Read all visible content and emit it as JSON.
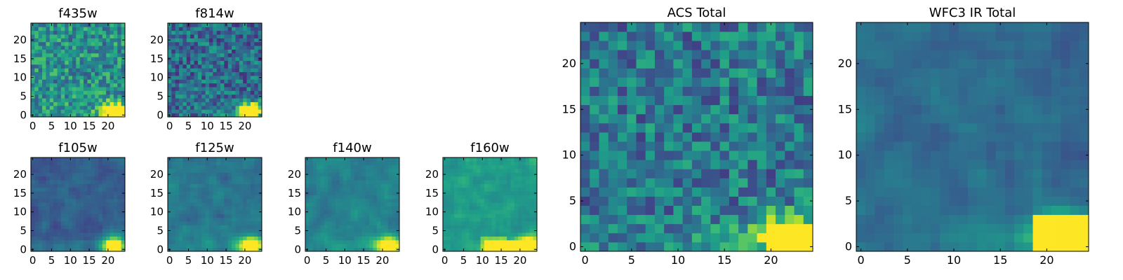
{
  "chart_data": [
    {
      "type": "heatmap",
      "title": "f435w",
      "xticks": [
        "0",
        "5",
        "10",
        "15",
        "20"
      ],
      "yticks": [
        "0",
        "5",
        "10",
        "15",
        "20"
      ],
      "xlim": [
        -0.5,
        24.5
      ],
      "ylim": [
        -0.5,
        24.5
      ],
      "bright_spot": {
        "x": [
          20,
          23
        ],
        "y": [
          0,
          2
        ],
        "max": 1.0
      },
      "description_level": 0.5
    },
    {
      "type": "heatmap",
      "title": "f814w",
      "xticks": [
        "0",
        "5",
        "10",
        "15",
        "20"
      ],
      "yticks": [
        "0",
        "5",
        "10",
        "15",
        "20"
      ],
      "xlim": [
        -0.5,
        24.5
      ],
      "ylim": [
        -0.5,
        24.5
      ],
      "bright_spot": {
        "x": [
          19,
          23
        ],
        "y": [
          0,
          3
        ],
        "max": 1.0
      },
      "description_level": 0.35
    },
    {
      "type": "heatmap",
      "title": "f105w",
      "xticks": [
        "0",
        "5",
        "10",
        "15",
        "20"
      ],
      "yticks": [
        "0",
        "5",
        "10",
        "15",
        "20"
      ],
      "xlim": [
        -0.5,
        24.5
      ],
      "ylim": [
        -0.5,
        24.5
      ],
      "bright_spot": {
        "x": [
          19,
          23
        ],
        "y": [
          0,
          3
        ],
        "max": 1.0
      },
      "description_level": 0.3
    },
    {
      "type": "heatmap",
      "title": "f125w",
      "xticks": [
        "0",
        "5",
        "10",
        "15",
        "20"
      ],
      "yticks": [
        "0",
        "5",
        "10",
        "15",
        "20"
      ],
      "xlim": [
        -0.5,
        24.5
      ],
      "ylim": [
        -0.5,
        24.5
      ],
      "bright_spot": {
        "x": [
          19,
          23
        ],
        "y": [
          0,
          3
        ],
        "max": 1.0
      },
      "description_level": 0.4
    },
    {
      "type": "heatmap",
      "title": "f140w",
      "xticks": [
        "0",
        "5",
        "10",
        "15",
        "20"
      ],
      "yticks": [
        "0",
        "5",
        "10",
        "15",
        "20"
      ],
      "xlim": [
        -0.5,
        24.5
      ],
      "ylim": [
        -0.5,
        24.5
      ],
      "bright_spot": {
        "x": [
          19,
          23
        ],
        "y": [
          0,
          3
        ],
        "max": 1.0
      },
      "description_level": 0.45
    },
    {
      "type": "heatmap",
      "title": "f160w",
      "xticks": [
        "0",
        "5",
        "10",
        "15",
        "20"
      ],
      "yticks": [
        "0",
        "5",
        "10",
        "15",
        "20"
      ],
      "xlim": [
        -0.5,
        24.5
      ],
      "ylim": [
        -0.5,
        24.5
      ],
      "bright_spot": {
        "x": [
          10,
          23
        ],
        "y": [
          0,
          3
        ],
        "max": 1.0
      },
      "description_level": 0.55
    },
    {
      "type": "heatmap",
      "title": "ACS Total",
      "xticks": [
        "0",
        "5",
        "10",
        "15",
        "20"
      ],
      "yticks": [
        "0",
        "5",
        "10",
        "15",
        "20"
      ],
      "xlim": [
        -0.5,
        24.5
      ],
      "ylim": [
        -0.5,
        24.5
      ],
      "bright_spot": {
        "x": [
          19,
          24
        ],
        "y": [
          0,
          3
        ],
        "max": 1.0
      },
      "description_level": 0.4
    },
    {
      "type": "heatmap",
      "title": "WFC3 IR Total",
      "xticks": [
        "0",
        "5",
        "10",
        "15",
        "20"
      ],
      "yticks": [
        "0",
        "5",
        "10",
        "15",
        "20"
      ],
      "xlim": [
        -0.5,
        24.5
      ],
      "ylim": [
        -0.5,
        24.5
      ],
      "bright_spot": {
        "x": [
          18,
          24
        ],
        "y": [
          0,
          4
        ],
        "max": 1.0
      },
      "description_level": 0.35
    }
  ],
  "colormap": [
    "#440154",
    "#482878",
    "#3e4989",
    "#31688e",
    "#26828e",
    "#1f9e89",
    "#35b779",
    "#6ece58",
    "#b5de2b",
    "#fde725"
  ]
}
